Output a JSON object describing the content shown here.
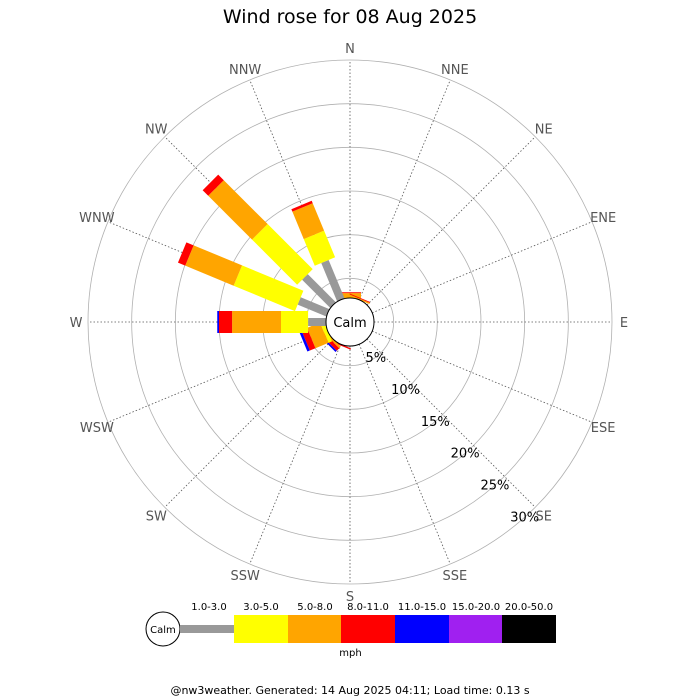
{
  "page": {
    "title": "Wind rose for 08 Aug 2025",
    "footer": "@nw3weather. Generated: 14 Aug 2025 04:11; Load time: 0.13 s"
  },
  "chart_data": {
    "type": "wind-rose",
    "title": "Wind rose for 08 Aug 2025",
    "directions": [
      "N",
      "NNE",
      "NE",
      "ENE",
      "E",
      "ESE",
      "SE",
      "SSE",
      "S",
      "SSW",
      "SW",
      "WSW",
      "W",
      "WNW",
      "NW",
      "NNW"
    ],
    "calm_label": "Calm",
    "radial_unit": "%",
    "radial_max": 30,
    "radial_ticks": [
      5,
      10,
      15,
      20,
      25,
      30
    ],
    "radial_tick_labels": [
      "5%",
      "10%",
      "15%",
      "20%",
      "25%",
      "30%"
    ],
    "speed_unit": "mph",
    "speed_bins": [
      {
        "label": "1.0-3.0",
        "color": "#999999"
      },
      {
        "label": "3.0-5.0",
        "color": "#ffff00"
      },
      {
        "label": "5.0-8.0",
        "color": "#ffa500"
      },
      {
        "label": "8.0-11.0",
        "color": "#ff0000"
      },
      {
        "label": "11.0-15.0",
        "color": "#0000ff"
      },
      {
        "label": "15.0-20.0",
        "color": "#a020f0"
      },
      {
        "label": "20.0-50.0",
        "color": "#000000"
      }
    ],
    "calm_radius_percent": 1.0,
    "cumulative_percent_by_direction": {
      "N": [
        1.6,
        2.7,
        3.3,
        3.4,
        3.4,
        3.4,
        3.4
      ],
      "NNE": [
        1.6,
        2.5,
        2.9,
        3.0,
        3.0,
        3.0,
        3.0
      ],
      "NNW": [
        7.5,
        10.8,
        14.2,
        14.5,
        14.5,
        14.5,
        14.5
      ],
      "NW": [
        7.3,
        14.6,
        21.7,
        22.6,
        22.6,
        22.6,
        22.6
      ],
      "WNW": [
        6.3,
        13.9,
        19.9,
        20.8,
        20.8,
        20.8,
        20.8
      ],
      "W": [
        4.8,
        7.9,
        13.5,
        15.0,
        15.2,
        15.2,
        15.2
      ],
      "WSW": [
        2.3,
        3.2,
        4.8,
        5.5,
        5.8,
        5.8,
        5.8
      ],
      "SW": [
        2.0,
        2.3,
        3.0,
        3.4,
        3.6,
        3.6,
        3.6
      ],
      "SSW": [
        1.9,
        2.1,
        2.4,
        2.9,
        2.9,
        2.9,
        2.9
      ],
      "S": [
        1.6,
        1.7,
        1.9,
        2.1,
        2.1,
        2.1,
        2.1
      ],
      "SSE": [
        1.3,
        1.4,
        1.6,
        1.6,
        1.6,
        1.6,
        1.6
      ],
      "SE": [
        1.1,
        1.3,
        1.3,
        1.3,
        1.3,
        1.3,
        1.3
      ],
      "ESE": [
        1.1,
        1.1,
        1.1,
        1.1,
        1.1,
        1.1,
        1.1
      ],
      "E": [
        1.1,
        1.3,
        1.3,
        1.3,
        1.3,
        1.3,
        1.3
      ],
      "ENE": [
        1.1,
        1.1,
        1.1,
        1.1,
        1.1,
        1.1,
        1.1
      ],
      "NE": [
        1.5,
        1.6,
        1.6,
        1.6,
        1.6,
        1.6,
        1.6
      ]
    }
  }
}
